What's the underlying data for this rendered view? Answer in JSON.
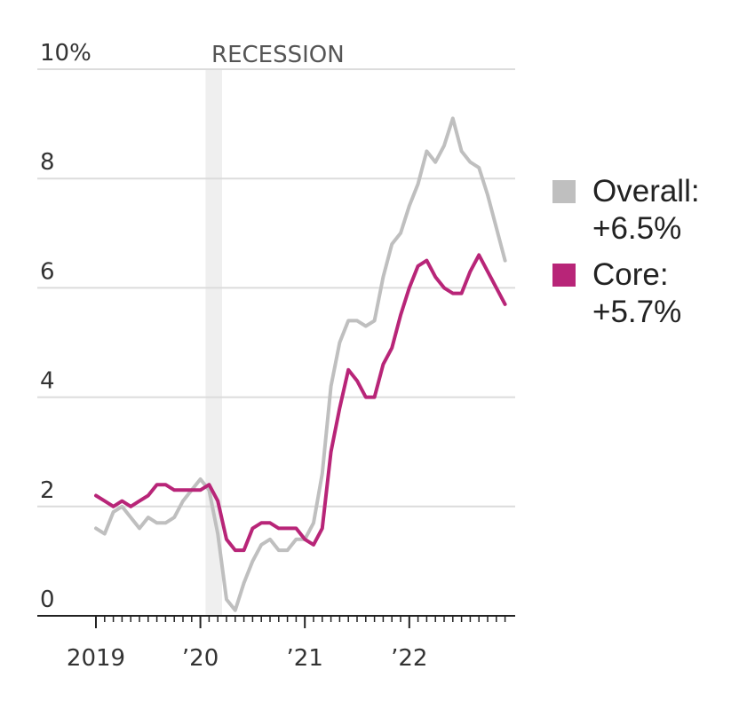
{
  "chart_data": {
    "type": "line",
    "ylim": [
      0,
      10
    ],
    "y_ticks": [
      {
        "value": 10,
        "label": "10%"
      },
      {
        "value": 8,
        "label": "8"
      },
      {
        "value": 6,
        "label": "6"
      },
      {
        "value": 4,
        "label": "4"
      },
      {
        "value": 2,
        "label": "2"
      },
      {
        "value": 0,
        "label": "0"
      }
    ],
    "x_ticks": [
      {
        "value": 0,
        "label": "2019"
      },
      {
        "value": 12,
        "label": "’20"
      },
      {
        "value": 24,
        "label": "’21"
      },
      {
        "value": 36,
        "label": "’22"
      }
    ],
    "x_month_index_range": [
      0,
      47
    ],
    "recession": {
      "label": "RECESSION",
      "start": 13,
      "end": 15
    },
    "grid": true,
    "legend_position": "right",
    "series": [
      {
        "name": "Overall",
        "legend_label": "Overall:",
        "value_label": "+6.5%",
        "color": "#bfbfbf",
        "values": [
          1.6,
          1.5,
          1.9,
          2.0,
          1.8,
          1.6,
          1.8,
          1.7,
          1.7,
          1.8,
          2.1,
          2.3,
          2.5,
          2.3,
          1.5,
          0.3,
          0.1,
          0.6,
          1.0,
          1.3,
          1.4,
          1.2,
          1.2,
          1.4,
          1.4,
          1.7,
          2.6,
          4.2,
          5.0,
          5.4,
          5.4,
          5.3,
          5.4,
          6.2,
          6.8,
          7.0,
          7.5,
          7.9,
          8.5,
          8.3,
          8.6,
          9.1,
          8.5,
          8.3,
          8.2,
          7.7,
          7.1,
          6.5
        ]
      },
      {
        "name": "Core",
        "legend_label": "Core:",
        "value_label": "+5.7%",
        "color": "#b82578",
        "values": [
          2.2,
          2.1,
          2.0,
          2.1,
          2.0,
          2.1,
          2.2,
          2.4,
          2.4,
          2.3,
          2.3,
          2.3,
          2.3,
          2.4,
          2.1,
          1.4,
          1.2,
          1.2,
          1.6,
          1.7,
          1.7,
          1.6,
          1.6,
          1.6,
          1.4,
          1.3,
          1.6,
          3.0,
          3.8,
          4.5,
          4.3,
          4.0,
          4.0,
          4.6,
          4.9,
          5.5,
          6.0,
          6.4,
          6.5,
          6.2,
          6.0,
          5.9,
          5.9,
          6.3,
          6.6,
          6.3,
          6.0,
          5.7
        ]
      }
    ]
  }
}
